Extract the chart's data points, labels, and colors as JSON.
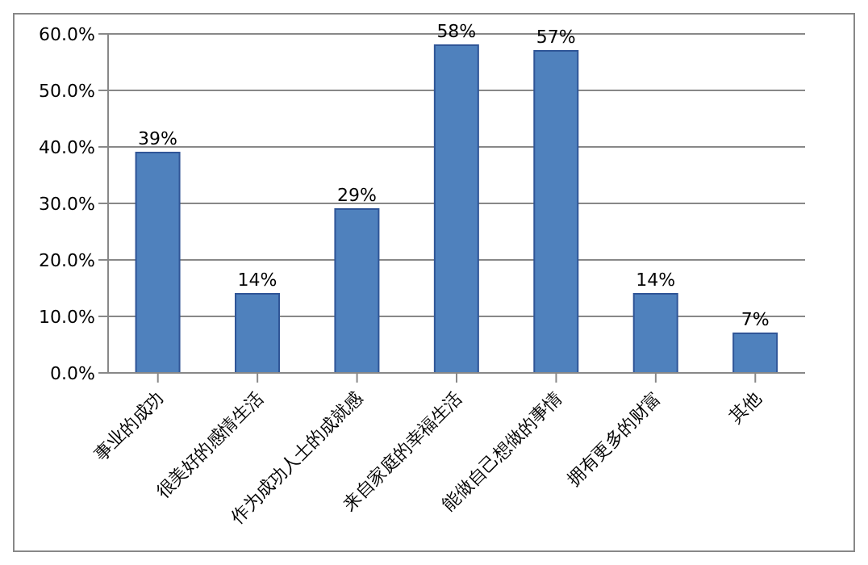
{
  "chart_data": {
    "type": "bar",
    "categories": [
      "事业的成功",
      "很美好的感情生活",
      "作为成功人士的成就感",
      "来自家庭的幸福生活",
      "能做自己想做的事情",
      "拥有更多的财富",
      "其他"
    ],
    "values": [
      39,
      14,
      29,
      58,
      57,
      14,
      7
    ],
    "value_labels": [
      "39%",
      "14%",
      "29%",
      "58%",
      "57%",
      "14%",
      "7%"
    ],
    "color": "#4f81bd",
    "ylim": [
      0,
      60
    ],
    "yticks": [
      {
        "value": 0,
        "label": "0.0%"
      },
      {
        "value": 10,
        "label": "10.0%"
      },
      {
        "value": 20,
        "label": "20.0%"
      },
      {
        "value": 30,
        "label": "30.0%"
      },
      {
        "value": 40,
        "label": "40.0%"
      },
      {
        "value": 50,
        "label": "50.0%"
      },
      {
        "value": 60,
        "label": "60.0%"
      }
    ],
    "grid": "y"
  }
}
